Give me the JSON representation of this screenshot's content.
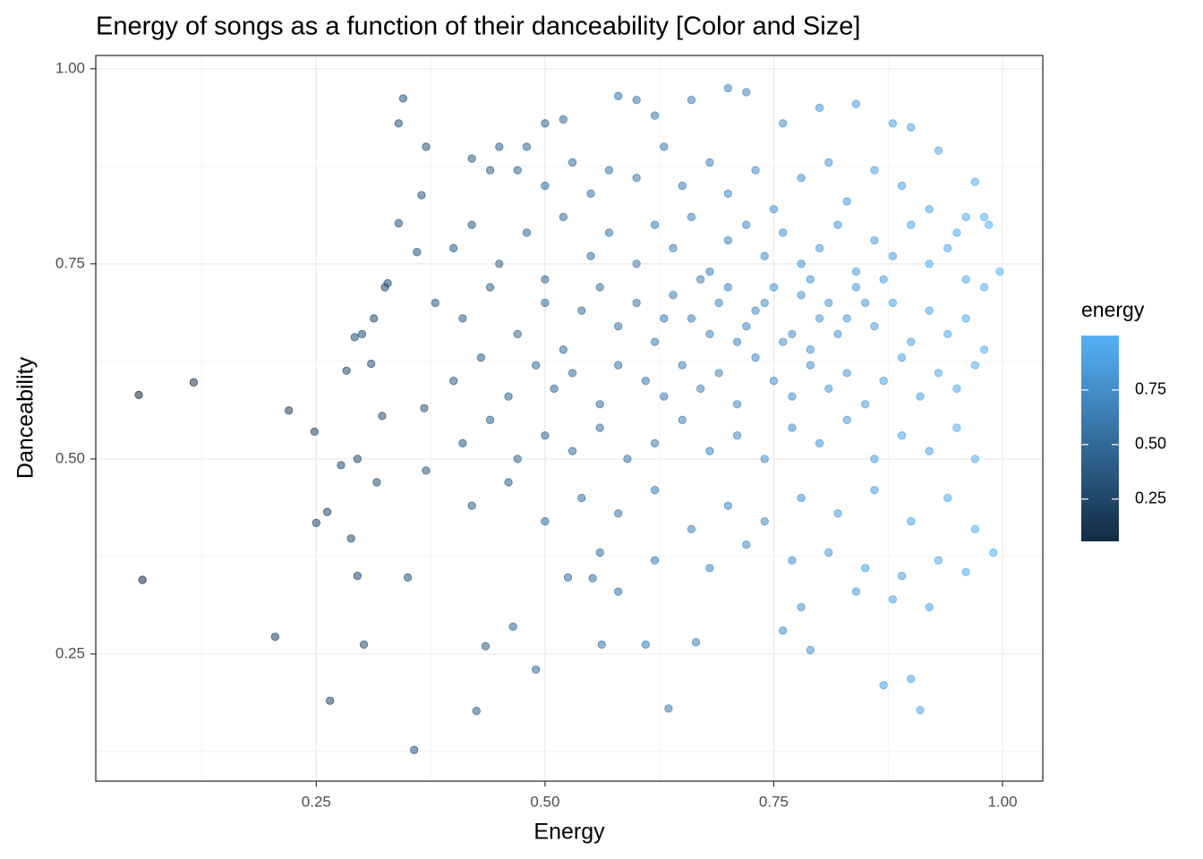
{
  "chart_data": {
    "type": "scatter",
    "title": "Energy of songs as a function of their danceability [Color and Size]",
    "xlabel": "Energy",
    "ylabel": "Danceability",
    "xlim": [
      0.009,
      1.044
    ],
    "ylim": [
      0.087,
      1.017
    ],
    "xticks": [
      0.25,
      {
        "value": 0.5,
        "label": "0.50"
      },
      0.75,
      {
        "value": 1.0,
        "label": "1.00"
      }
    ],
    "yticks": [
      0.25,
      {
        "value": 0.5,
        "label": "0.50"
      },
      0.75,
      {
        "value": 1.0,
        "label": "1.00"
      }
    ],
    "x_minor_grid": [
      0.125,
      0.375,
      0.625,
      0.875
    ],
    "y_minor_grid": [
      0.125,
      0.375,
      0.625,
      0.875
    ],
    "grid": true,
    "colorbar": {
      "title": "energy",
      "limits": [
        0.056,
        1.0
      ],
      "low": "#132B43",
      "high": "#56B1F7",
      "ticks": [
        0.25,
        {
          "value": 0.5,
          "label": "0.50"
        },
        0.75
      ]
    },
    "x": [
      0.056,
      0.06,
      0.116,
      0.205,
      0.22,
      0.248,
      0.25,
      0.262,
      0.265,
      0.277,
      0.283,
      0.288,
      0.292,
      0.295,
      0.302,
      0.295,
      0.31,
      0.316,
      0.322,
      0.313,
      0.328,
      0.34,
      0.345,
      0.34,
      0.35,
      0.357,
      0.36,
      0.365,
      0.37,
      0.368,
      0.37,
      0.325,
      0.3,
      0.425,
      0.435,
      0.465,
      0.49,
      0.525,
      0.552,
      0.562,
      0.58,
      0.61,
      0.635,
      0.665,
      0.76,
      0.78,
      0.79,
      0.87,
      0.9,
      0.91,
      0.997,
      0.99,
      0.48,
      0.5,
      0.52,
      0.58,
      0.6,
      0.62,
      0.66,
      0.7,
      0.72,
      0.76,
      0.8,
      0.84,
      0.88,
      0.9,
      0.93,
      0.97,
      0.98,
      0.985,
      0.96,
      0.42,
      0.44,
      0.45,
      0.47,
      0.5,
      0.53,
      0.55,
      0.57,
      0.6,
      0.63,
      0.65,
      0.68,
      0.7,
      0.73,
      0.75,
      0.78,
      0.81,
      0.83,
      0.86,
      0.89,
      0.92,
      0.95,
      0.4,
      0.42,
      0.45,
      0.48,
      0.5,
      0.52,
      0.55,
      0.57,
      0.6,
      0.62,
      0.64,
      0.66,
      0.68,
      0.7,
      0.72,
      0.74,
      0.76,
      0.78,
      0.8,
      0.82,
      0.84,
      0.86,
      0.88,
      0.9,
      0.92,
      0.94,
      0.96,
      0.98,
      0.38,
      0.41,
      0.44,
      0.47,
      0.5,
      0.52,
      0.54,
      0.56,
      0.58,
      0.6,
      0.62,
      0.64,
      0.66,
      0.68,
      0.7,
      0.72,
      0.74,
      0.76,
      0.78,
      0.8,
      0.82,
      0.84,
      0.86,
      0.88,
      0.9,
      0.92,
      0.94,
      0.96,
      0.98,
      0.4,
      0.43,
      0.46,
      0.49,
      0.51,
      0.53,
      0.56,
      0.58,
      0.61,
      0.63,
      0.65,
      0.67,
      0.69,
      0.71,
      0.73,
      0.75,
      0.77,
      0.79,
      0.81,
      0.83,
      0.85,
      0.87,
      0.89,
      0.91,
      0.93,
      0.95,
      0.97,
      0.41,
      0.44,
      0.47,
      0.5,
      0.53,
      0.56,
      0.59,
      0.62,
      0.65,
      0.68,
      0.71,
      0.74,
      0.77,
      0.8,
      0.83,
      0.86,
      0.89,
      0.92,
      0.95,
      0.97,
      0.42,
      0.46,
      0.5,
      0.54,
      0.58,
      0.62,
      0.66,
      0.7,
      0.74,
      0.78,
      0.82,
      0.86,
      0.9,
      0.94,
      0.97,
      0.56,
      0.62,
      0.68,
      0.72,
      0.77,
      0.81,
      0.85,
      0.89,
      0.93,
      0.96,
      0.84,
      0.88,
      0.92,
      0.73,
      0.77,
      0.79,
      0.81,
      0.83,
      0.71,
      0.69,
      0.75,
      0.85,
      0.87,
      0.79,
      0.67,
      0.63
    ],
    "values": [
      0.582,
      0.345,
      0.598,
      0.272,
      0.562,
      0.535,
      0.418,
      0.432,
      0.19,
      0.492,
      0.613,
      0.398,
      0.656,
      0.5,
      0.262,
      0.35,
      0.622,
      0.47,
      0.555,
      0.68,
      0.725,
      0.93,
      0.962,
      0.802,
      0.348,
      0.127,
      0.765,
      0.838,
      0.9,
      0.565,
      0.485,
      0.72,
      0.66,
      0.177,
      0.26,
      0.285,
      0.23,
      0.348,
      0.347,
      0.262,
      0.33,
      0.262,
      0.18,
      0.265,
      0.28,
      0.31,
      0.255,
      0.21,
      0.218,
      0.178,
      0.74,
      0.38,
      0.9,
      0.93,
      0.935,
      0.965,
      0.96,
      0.94,
      0.96,
      0.975,
      0.97,
      0.93,
      0.95,
      0.955,
      0.93,
      0.925,
      0.895,
      0.855,
      0.81,
      0.8,
      0.81,
      0.885,
      0.87,
      0.9,
      0.87,
      0.85,
      0.88,
      0.84,
      0.87,
      0.86,
      0.9,
      0.85,
      0.88,
      0.84,
      0.87,
      0.82,
      0.86,
      0.88,
      0.83,
      0.87,
      0.85,
      0.82,
      0.79,
      0.77,
      0.8,
      0.75,
      0.79,
      0.73,
      0.81,
      0.76,
      0.79,
      0.75,
      0.8,
      0.77,
      0.81,
      0.74,
      0.78,
      0.8,
      0.76,
      0.79,
      0.75,
      0.77,
      0.8,
      0.74,
      0.78,
      0.76,
      0.8,
      0.75,
      0.77,
      0.73,
      0.72,
      0.7,
      0.68,
      0.72,
      0.66,
      0.7,
      0.64,
      0.69,
      0.72,
      0.67,
      0.7,
      0.65,
      0.71,
      0.68,
      0.66,
      0.72,
      0.67,
      0.7,
      0.65,
      0.71,
      0.68,
      0.66,
      0.72,
      0.67,
      0.7,
      0.65,
      0.69,
      0.66,
      0.68,
      0.64,
      0.6,
      0.63,
      0.58,
      0.62,
      0.59,
      0.61,
      0.57,
      0.62,
      0.6,
      0.58,
      0.62,
      0.59,
      0.61,
      0.57,
      0.63,
      0.6,
      0.58,
      0.62,
      0.59,
      0.61,
      0.57,
      0.6,
      0.63,
      0.58,
      0.61,
      0.59,
      0.62,
      0.52,
      0.55,
      0.5,
      0.53,
      0.51,
      0.54,
      0.5,
      0.52,
      0.55,
      0.51,
      0.53,
      0.5,
      0.54,
      0.52,
      0.55,
      0.5,
      0.53,
      0.51,
      0.54,
      0.5,
      0.44,
      0.47,
      0.42,
      0.45,
      0.43,
      0.46,
      0.41,
      0.44,
      0.42,
      0.45,
      0.43,
      0.46,
      0.42,
      0.45,
      0.41,
      0.38,
      0.37,
      0.36,
      0.39,
      0.37,
      0.38,
      0.36,
      0.35,
      0.37,
      0.355,
      0.33,
      0.32,
      0.31,
      0.69,
      0.66,
      0.73,
      0.7,
      0.68,
      0.65,
      0.7,
      0.72,
      0.7,
      0.73,
      0.64,
      0.73,
      0.68
    ]
  }
}
